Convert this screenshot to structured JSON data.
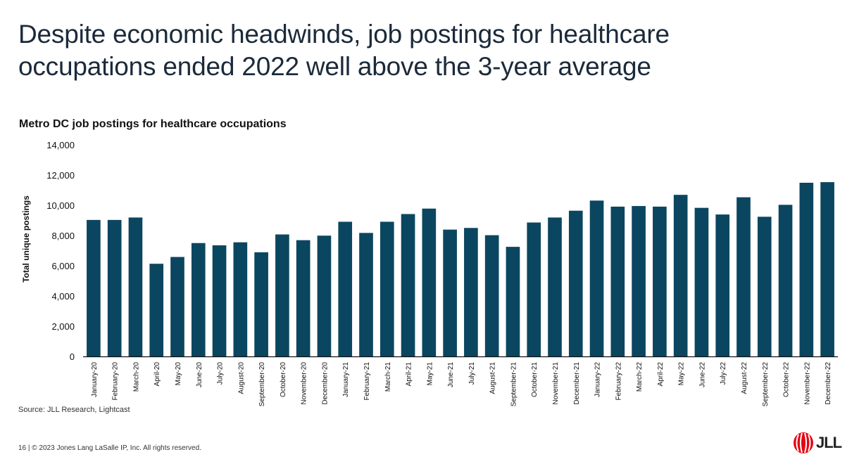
{
  "title_line1": "Despite economic headwinds, job postings for healthcare",
  "title_line2": "occupations ended 2022 well above the 3-year average",
  "source": "Source: JLL Research, Lightcast",
  "footer": "16  |  © 2023 Jones Lang LaSalle IP, Inc. All rights reserved.",
  "logo": "JLL",
  "colors": {
    "bar": "#0b4660",
    "logo_red": "#e30613"
  },
  "chart_data": {
    "type": "bar",
    "title": "Metro DC job postings for healthcare occupations",
    "xlabel": "",
    "ylabel": "Total unique postings",
    "ylim": [
      0,
      14000
    ],
    "yticks": [
      "0",
      "2,000",
      "4,000",
      "6,000",
      "8,000",
      "10,000",
      "12,000",
      "14,000"
    ],
    "grid": false,
    "categories": [
      "January-20",
      "February-20",
      "March-20",
      "April-20",
      "May-20",
      "June-20",
      "July-20",
      "August-20",
      "September-20",
      "October-20",
      "November-20",
      "December-20",
      "January-21",
      "February-21",
      "March-21",
      "April-21",
      "May-21",
      "June-21",
      "July-21",
      "August-21",
      "September-21",
      "October-21",
      "November-21",
      "December-21",
      "January-22",
      "February-22",
      "March-22",
      "April-22",
      "May-22",
      "June-22",
      "July-22",
      "August-22",
      "September-22",
      "October-22",
      "November-22",
      "December-22"
    ],
    "values": [
      9030,
      9030,
      9190,
      6130,
      6580,
      7500,
      7350,
      7550,
      6890,
      8070,
      7690,
      7990,
      8910,
      8170,
      8910,
      9420,
      9780,
      8390,
      8500,
      8020,
      7250,
      8860,
      9190,
      9640,
      10310,
      9910,
      9950,
      9910,
      10690,
      9830,
      9390,
      10530,
      9240,
      10030,
      11490,
      11530
    ]
  }
}
